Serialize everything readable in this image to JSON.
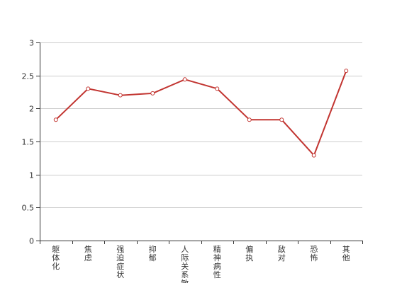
{
  "chart_data": {
    "type": "line",
    "title": "",
    "xlabel": "",
    "ylabel": "",
    "categories": [
      "躯体化",
      "焦虑",
      "强迫症状",
      "抑郁",
      "人际关系敏感",
      "精神病性",
      "偏执",
      "敌对",
      "恐怖",
      "其他"
    ],
    "series": [
      {
        "values": [
          1.83,
          2.3,
          2.2,
          2.23,
          2.44,
          2.3,
          1.83,
          1.83,
          1.29,
          2.57
        ]
      }
    ],
    "ylim": [
      0,
      3
    ],
    "yticks": [
      0,
      0.5,
      1,
      1.5,
      2,
      2.5,
      3
    ],
    "ytick_labels": [
      "0",
      "0.5",
      "1",
      "1.5",
      "2",
      "2.5",
      "3"
    ],
    "grid": true,
    "colors": {
      "line": "#c23531",
      "point_fill": "#ffffff"
    }
  }
}
